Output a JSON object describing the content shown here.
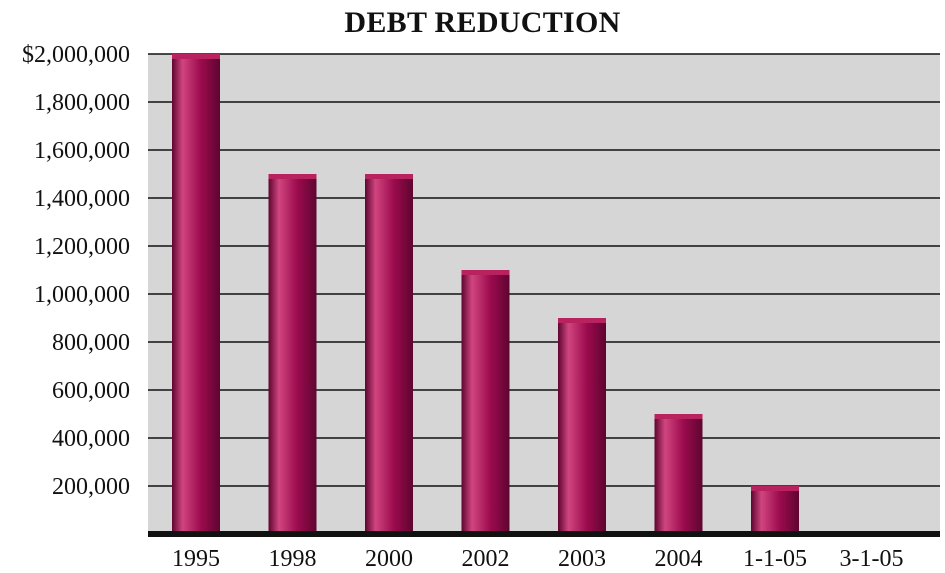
{
  "chart_data": {
    "type": "bar",
    "title": "DEBT REDUCTION",
    "xlabel": "",
    "ylabel": "",
    "categories": [
      "1995",
      "1998",
      "2000",
      "2002",
      "2003",
      "2004",
      "1-1-05",
      "3-1-05"
    ],
    "values": [
      2000000,
      1500000,
      1500000,
      1100000,
      900000,
      500000,
      200000,
      0
    ],
    "ylim": [
      0,
      2000000
    ],
    "yticks": [
      200000,
      400000,
      600000,
      800000,
      1000000,
      1200000,
      1400000,
      1600000,
      1800000,
      2000000
    ],
    "ytick_labels": [
      "200,000",
      "400,000",
      "600,000",
      "800,000",
      "1,000,000",
      "1,200,000",
      "1,400,000",
      "1,600,000",
      "1,800,000",
      "$2,000,000"
    ],
    "grid": true,
    "legend": "none",
    "colors": {
      "bar": "#9c0b4e",
      "bar_highlight": "#d0457f",
      "bar_shadow": "#5e0530",
      "bar_top": "#b8225f",
      "plot_background": "#d6d6d6",
      "gridline": "#111111",
      "baseline": "#111111"
    }
  }
}
